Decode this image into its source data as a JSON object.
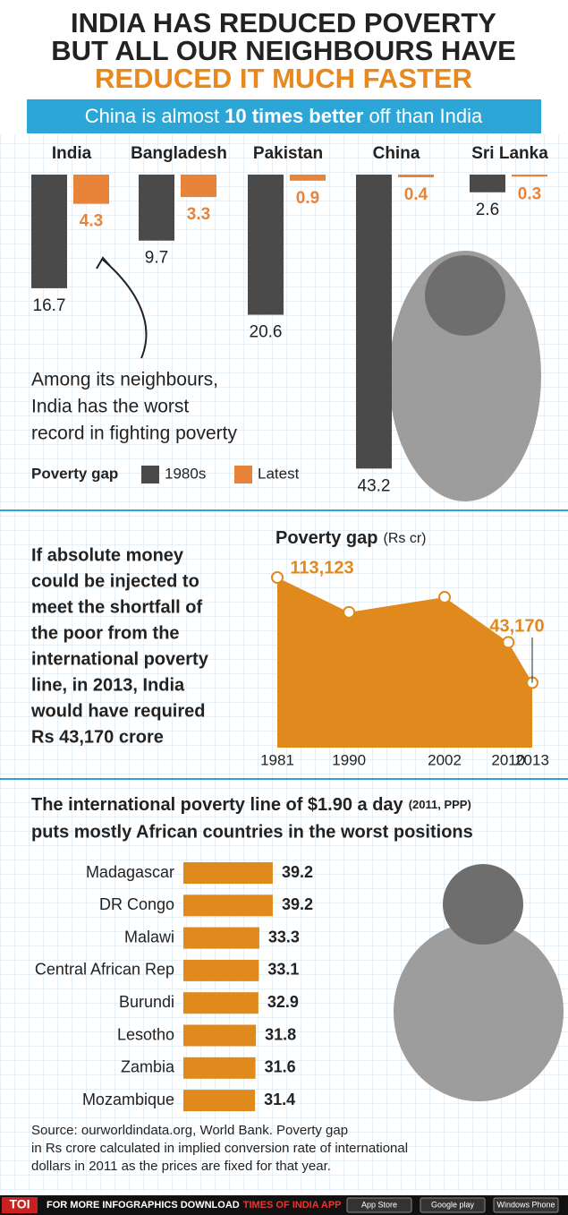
{
  "header": {
    "title_lines": [
      "INDIA HAS REDUCED POVERTY",
      "BUT ALL OUR NEIGHBOURS HAVE",
      "REDUCED IT MUCH FASTER"
    ],
    "subtitle_parts": [
      "China is almost",
      "10 times better",
      "off than India"
    ]
  },
  "chart_data": [
    {
      "type": "bar",
      "categories": [
        "India",
        "Bangladesh",
        "Pakistan",
        "China",
        "Sri Lanka"
      ],
      "series": [
        {
          "name": "1980s",
          "color": "#4a4a4a",
          "values": [
            16.7,
            9.7,
            20.6,
            43.2,
            2.6
          ]
        },
        {
          "name": "Latest",
          "color": "#e8843a",
          "values": [
            4.3,
            3.3,
            0.9,
            0.4,
            0.3
          ]
        }
      ],
      "legend_title": "Poverty gap",
      "annotation_lines": [
        "Among its neighbours,",
        "India has the worst",
        "record in fighting poverty"
      ]
    },
    {
      "type": "area",
      "title": "Poverty gap",
      "unit": "(Rs cr)",
      "color": "#e08a1e",
      "x": [
        1981,
        1990,
        2002,
        2010,
        2013
      ],
      "values": [
        113123,
        90000,
        100000,
        70000,
        43170
      ],
      "value_labels": [
        "113,123",
        null,
        null,
        null,
        "43,170"
      ],
      "side_text_lines": [
        "If absolute money",
        "could be injected to",
        "meet the shortfall of",
        "the poor from the",
        "international poverty",
        "line, in 2013, India",
        "would have required",
        "Rs 43,170 crore"
      ]
    },
    {
      "type": "hbar",
      "title_parts": [
        "The international poverty line of  $1.90 a day",
        "(2011, PPP)"
      ],
      "subtitle": "puts mostly African countries in the worst positions",
      "color": "#e08a1e",
      "categories": [
        "Madagascar",
        "DR Congo",
        "Malawi",
        "Central African Rep",
        "Burundi",
        "Lesotho",
        "Zambia",
        "Mozambique"
      ],
      "values": [
        39.2,
        39.2,
        33.3,
        33.1,
        32.9,
        31.8,
        31.6,
        31.4
      ]
    }
  ],
  "source_lines": [
    "Source: ourworldindata.org, World Bank. Poverty gap",
    "in Rs crore calculated in implied conversion rate of international",
    "dollars in 2011 as the prices are fixed for that year."
  ],
  "footer": {
    "logo": "TOI",
    "text": "FOR MORE INFOGRAPHICS DOWNLOAD",
    "app": "TIMES OF INDIA APP",
    "stores": [
      "App Store",
      "Google play",
      "Windows Phone"
    ]
  }
}
